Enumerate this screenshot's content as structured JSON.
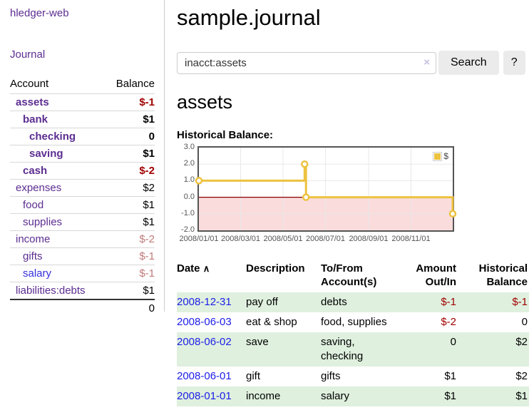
{
  "app": {
    "title": "hledger-web",
    "nav_journal_label": "Journal"
  },
  "colors": {
    "accent_purple": "#5c2d91",
    "unvisited_link_blue": "#3530dd",
    "date_link_blue": "#1d1de8",
    "negative_red": "#a00000",
    "negative_faded": "#c07a7a",
    "row_stripe_green": "#dff0de",
    "chart_line_yellow": "#edc240",
    "chart_negative_region": "#fadcdc",
    "chart_zero_line": "#8b0000"
  },
  "sidebar": {
    "header": {
      "account": "Account",
      "balance": "Balance"
    },
    "accounts": [
      {
        "name": "assets",
        "indent": 1,
        "bold": true,
        "balance": "$-1",
        "balance_style": "neg"
      },
      {
        "name": "bank",
        "indent": 2,
        "bold": true,
        "balance": "$1",
        "balance_style": "pos"
      },
      {
        "name": "checking",
        "indent": 3,
        "bold": true,
        "balance": "0",
        "balance_style": "pos"
      },
      {
        "name": "saving",
        "indent": 3,
        "bold": true,
        "balance": "$1",
        "balance_style": "pos"
      },
      {
        "name": "cash",
        "indent": 2,
        "bold": true,
        "balance": "$-2",
        "balance_style": "neg"
      },
      {
        "name": "expenses",
        "indent": 1,
        "bold": false,
        "balance": "$2",
        "balance_style": "pos"
      },
      {
        "name": "food",
        "indent": 2,
        "bold": false,
        "balance": "$1",
        "balance_style": "pos"
      },
      {
        "name": "supplies",
        "indent": 2,
        "bold": false,
        "balance": "$1",
        "balance_style": "pos"
      },
      {
        "name": "income",
        "indent": 1,
        "bold": false,
        "balance": "$-2",
        "balance_style": "neg-faded"
      },
      {
        "name": "gifts",
        "indent": 2,
        "bold": false,
        "balance": "$-1",
        "balance_style": "neg-faded"
      },
      {
        "name": "salary",
        "indent": 2,
        "bold": false,
        "balance": "$-1",
        "balance_style": "neg-faded",
        "link_style": "unvisited"
      },
      {
        "name": "liabilities:debts",
        "indent": 1,
        "bold": false,
        "balance": "$1",
        "balance_style": "pos"
      }
    ],
    "total": "0"
  },
  "header": {
    "title": "sample.journal"
  },
  "search": {
    "value": "inacct:assets",
    "clear_icon": "×",
    "button_label": "Search",
    "help_label": "?"
  },
  "account_page": {
    "heading": "assets",
    "chart_label": "Historical Balance:"
  },
  "chart_data": {
    "type": "line",
    "title": "Historical Balance",
    "step": true,
    "series": [
      {
        "name": "$",
        "color": "#edc240",
        "points": [
          [
            "2008-01-01",
            1
          ],
          [
            "2008-06-01",
            2
          ],
          [
            "2008-06-03",
            0
          ],
          [
            "2008-12-31",
            -1
          ]
        ]
      }
    ],
    "xrange": [
      "2008-01-01",
      "2008-12-31"
    ],
    "ylim": [
      -2,
      3
    ],
    "yticks": [
      3.0,
      2.0,
      1.0,
      0.0,
      -1.0,
      -2.0
    ],
    "xticks": [
      "2008/01/01",
      "2008/03/01",
      "2008/05/01",
      "2008/07/01",
      "2008/09/01",
      "2008/11/01"
    ],
    "legend": {
      "position": "top-right",
      "label": "$"
    },
    "grid": true,
    "negative_region": true
  },
  "register": {
    "columns": {
      "date": "Date",
      "sort_arrow": "∧",
      "description": "Description",
      "accounts": "To/From Account(s)",
      "amount": "Amount Out/In",
      "balance": "Historical Balance"
    },
    "rows": [
      {
        "date": "2008-12-31",
        "description": "pay off",
        "accounts": "debts",
        "amount": "$-1",
        "balance": "$-1",
        "shaded": true
      },
      {
        "date": "2008-06-03",
        "description": "eat & shop",
        "accounts": "food, supplies",
        "amount": "$-2",
        "balance": "0",
        "shaded": false
      },
      {
        "date": "2008-06-02",
        "description": "save",
        "accounts": "saving, checking",
        "amount": "0",
        "balance": "$2",
        "shaded": true
      },
      {
        "date": "2008-06-01",
        "description": "gift",
        "accounts": "gifts",
        "amount": "$1",
        "balance": "$2",
        "shaded": false
      },
      {
        "date": "2008-01-01",
        "description": "income",
        "accounts": "salary",
        "amount": "$1",
        "balance": "$1",
        "shaded": true
      }
    ]
  }
}
